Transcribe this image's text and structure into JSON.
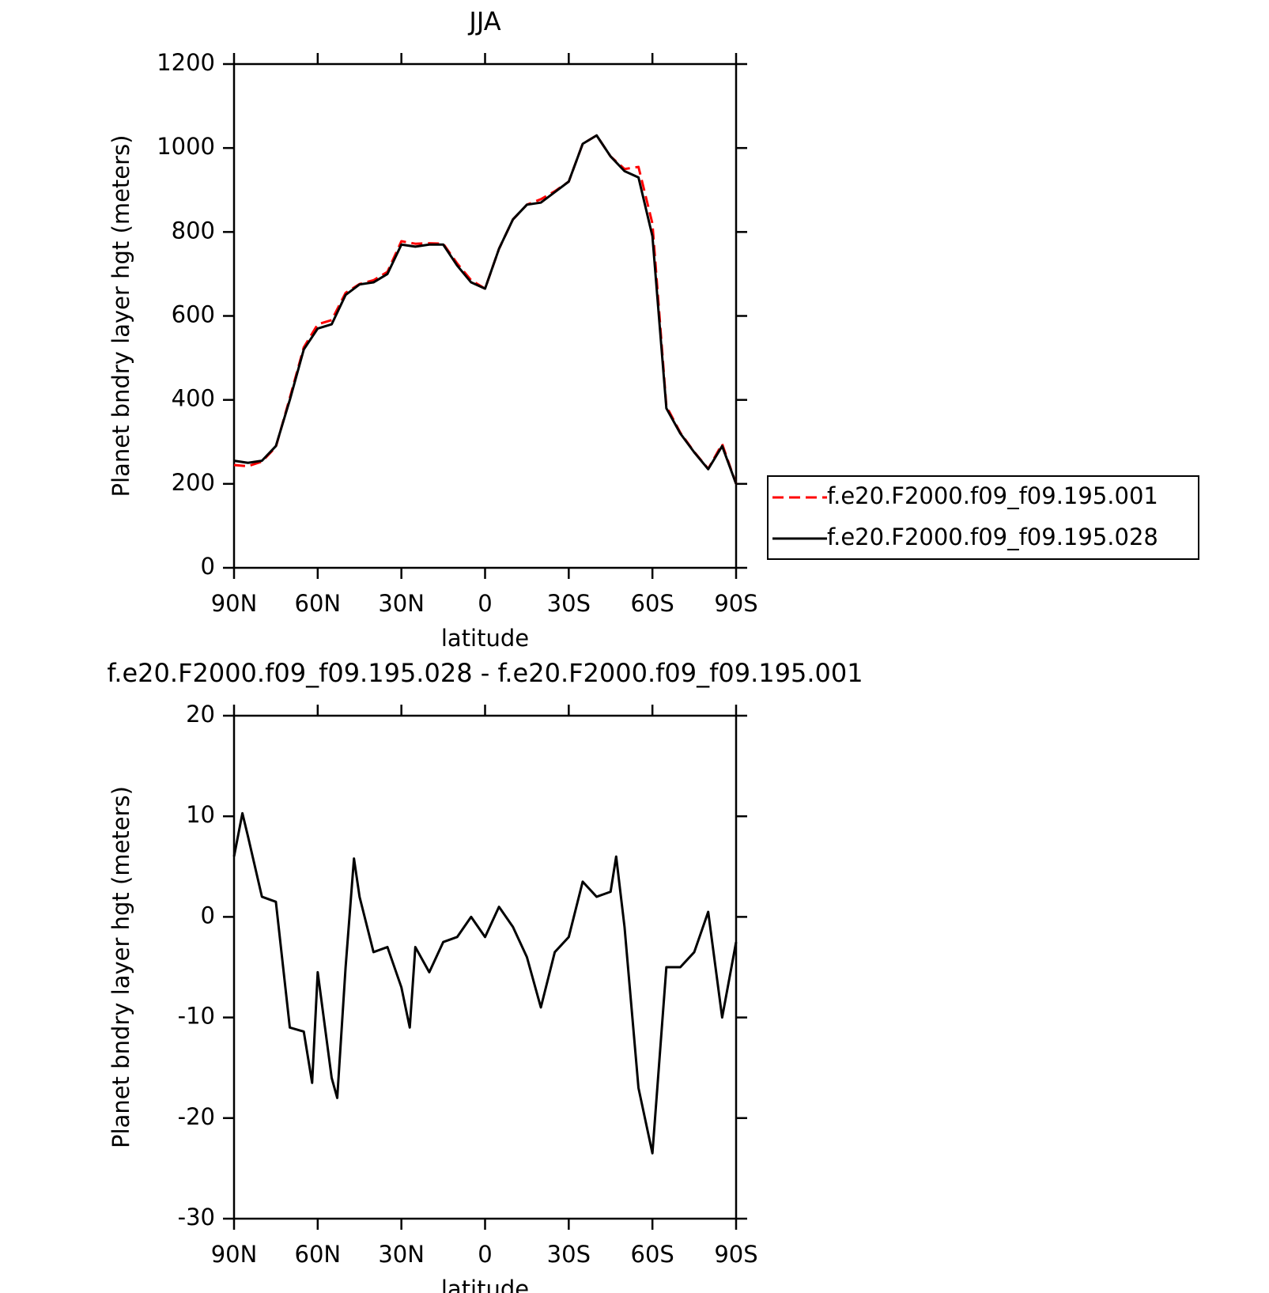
{
  "chart_data": [
    {
      "type": "line",
      "title": "JJA",
      "xlabel": "latitude",
      "ylabel": "Planet bndry layer hgt (meters)",
      "x": [
        90,
        85,
        80,
        75,
        70,
        65,
        60,
        55,
        50,
        45,
        40,
        35,
        30,
        25,
        20,
        15,
        10,
        5,
        0,
        -5,
        -10,
        -15,
        -20,
        -25,
        -30,
        -35,
        -40,
        -45,
        -50,
        -55,
        -60,
        -65,
        -70,
        -75,
        -80,
        -85,
        -90
      ],
      "series": [
        {
          "name": "f.e20.F2000.f09_f09.195.001",
          "color": "#ff0000",
          "line_style": "dashed",
          "values": [
            245,
            242,
            253,
            288,
            405,
            525,
            580,
            590,
            655,
            676,
            685,
            705,
            778,
            772,
            773,
            772,
            725,
            685,
            665,
            760,
            830,
            865,
            878,
            897,
            920,
            1010,
            1030,
            980,
            950,
            955,
            820,
            385,
            322,
            276,
            236,
            295,
            200
          ]
        },
        {
          "name": "f.e20.F2000.f09_f09.195.028",
          "color": "#000000",
          "line_style": "solid",
          "values": [
            255,
            250,
            255,
            290,
            400,
            520,
            570,
            580,
            650,
            675,
            680,
            700,
            770,
            765,
            770,
            770,
            720,
            680,
            665,
            760,
            830,
            865,
            870,
            895,
            920,
            1010,
            1030,
            980,
            945,
            930,
            790,
            380,
            320,
            275,
            235,
            290,
            200
          ]
        }
      ],
      "xlim": [
        90,
        -90
      ],
      "xticks": [
        {
          "value": 90,
          "label": "90N"
        },
        {
          "value": 60,
          "label": "60N"
        },
        {
          "value": 30,
          "label": "30N"
        },
        0,
        {
          "value": -30,
          "label": "30S"
        },
        {
          "value": -60,
          "label": "60S"
        },
        {
          "value": -90,
          "label": "90S"
        }
      ],
      "ylim": [
        0,
        1200
      ],
      "yticks": [
        0,
        200,
        400,
        600,
        800,
        1000,
        1200
      ],
      "legend": "right"
    },
    {
      "type": "line",
      "title": "f.e20.F2000.f09_f09.195.028 - f.e20.F2000.f09_f09.195.001",
      "xlabel": "latitude",
      "ylabel": "Planet bndry layer hgt (meters)",
      "x": [
        90,
        87,
        85,
        80,
        75,
        70,
        65,
        62,
        60,
        55,
        53,
        50,
        47,
        45,
        40,
        35,
        30,
        27,
        25,
        20,
        15,
        10,
        5,
        0,
        -5,
        -10,
        -15,
        -20,
        -25,
        -30,
        -35,
        -40,
        -45,
        -47,
        -50,
        -55,
        -60,
        -65,
        -70,
        -75,
        -80,
        -85,
        -90
      ],
      "series": [
        {
          "name": "f.e20.F2000.f09_f09.195.028 - f.e20.F2000.f09_f09.195.001",
          "color": "#000000",
          "line_style": "solid",
          "values": [
            6,
            10.3,
            8,
            2,
            1.5,
            -11,
            -11.4,
            -16.5,
            -5.5,
            -16,
            -18,
            -5,
            5.8,
            2,
            -3.5,
            -3,
            -7,
            -11,
            -3,
            -5.5,
            -2.5,
            -2,
            0,
            -2,
            1,
            -1,
            -4,
            -9,
            -3.5,
            -2,
            3.5,
            2,
            2.5,
            6,
            -1,
            -17,
            -23.5,
            -5,
            -5,
            -3.5,
            0.5,
            -10,
            -2.5
          ]
        }
      ],
      "xlim": [
        90,
        -90
      ],
      "xticks": [
        {
          "value": 90,
          "label": "90N"
        },
        {
          "value": 60,
          "label": "60N"
        },
        {
          "value": 30,
          "label": "30N"
        },
        0,
        {
          "value": -30,
          "label": "30S"
        },
        {
          "value": -60,
          "label": "60S"
        },
        {
          "value": -90,
          "label": "90S"
        }
      ],
      "ylim": [
        -30,
        20
      ],
      "yticks": [
        -30,
        -20,
        -10,
        0,
        10,
        20
      ]
    }
  ]
}
